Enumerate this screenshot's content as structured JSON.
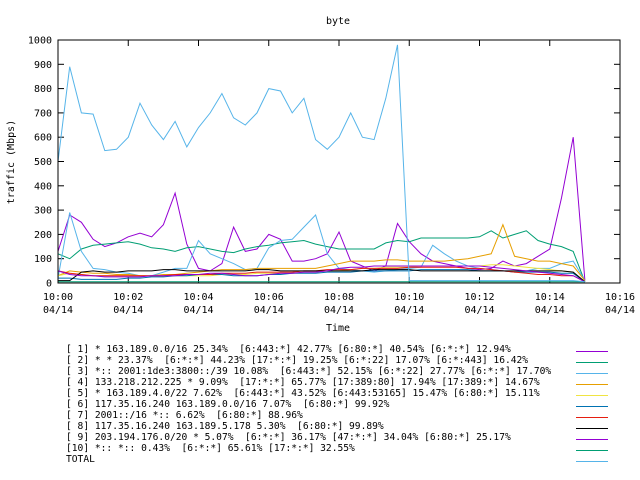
{
  "chart_data": {
    "type": "line",
    "title": "byte",
    "xlabel": "Time",
    "ylabel": "traffic (Mbps)",
    "ylim": [
      0,
      1000
    ],
    "yticks": [
      0,
      100,
      200,
      300,
      400,
      500,
      600,
      700,
      800,
      900,
      1000
    ],
    "xlim": [
      "10:00",
      "10:16"
    ],
    "xticks": [
      {
        "time": "10:00",
        "date": "04/14"
      },
      {
        "time": "10:02",
        "date": "04/14"
      },
      {
        "time": "10:04",
        "date": "04/14"
      },
      {
        "time": "10:06",
        "date": "04/14"
      },
      {
        "time": "10:08",
        "date": "04/14"
      },
      {
        "time": "10:10",
        "date": "04/14"
      },
      {
        "time": "10:12",
        "date": "04/14"
      },
      {
        "time": "10:14",
        "date": "04/14"
      },
      {
        "time": "10:16",
        "date": "04/14"
      }
    ],
    "x": [
      "10:00:00",
      "10:00:20",
      "10:00:40",
      "10:01:00",
      "10:01:20",
      "10:01:40",
      "10:02:00",
      "10:02:20",
      "10:02:40",
      "10:03:00",
      "10:03:20",
      "10:03:40",
      "10:04:00",
      "10:04:20",
      "10:04:40",
      "10:05:00",
      "10:05:20",
      "10:05:40",
      "10:06:00",
      "10:06:20",
      "10:06:40",
      "10:07:00",
      "10:07:20",
      "10:07:40",
      "10:08:00",
      "10:08:20",
      "10:08:40",
      "10:09:00",
      "10:09:20",
      "10:09:40",
      "10:10:00",
      "10:10:20",
      "10:10:40",
      "10:11:00",
      "10:11:20",
      "10:11:40",
      "10:12:00",
      "10:12:20",
      "10:12:40",
      "10:13:00",
      "10:13:20",
      "10:13:40",
      "10:14:00",
      "10:14:20",
      "10:14:40",
      "10:15:00"
    ],
    "grid": false,
    "legend_placement": "bottom",
    "series": [
      {
        "name": "[ 1] * 163.189.0.0/16 25.34%  [6:443:*] 42.77% [6:80:*] 40.54% [6:*:*] 12.94%",
        "color": "#9400d3",
        "values": [
          130,
          280,
          250,
          180,
          150,
          165,
          190,
          205,
          190,
          240,
          370,
          160,
          60,
          50,
          80,
          230,
          130,
          140,
          200,
          180,
          90,
          90,
          100,
          120,
          210,
          90,
          70,
          50,
          70,
          245,
          170,
          120,
          90,
          80,
          70,
          60,
          55,
          60,
          90,
          70,
          80,
          110,
          140,
          350,
          600,
          10
        ]
      },
      {
        "name": "[ 2] * * 23.37%  [6:*:*] 44.23% [17:*:*] 19.25% [6:*:22] 17.07% [6:*:443] 16.42%",
        "color": "#009e73",
        "values": [
          120,
          100,
          140,
          155,
          160,
          165,
          170,
          160,
          145,
          140,
          130,
          145,
          150,
          140,
          130,
          125,
          140,
          150,
          155,
          165,
          170,
          175,
          160,
          150,
          140,
          140,
          140,
          140,
          165,
          175,
          170,
          185,
          185,
          185,
          185,
          185,
          190,
          215,
          185,
          200,
          215,
          175,
          160,
          150,
          130,
          5
        ]
      },
      {
        "name": "[ 3] *:: 2001:1de3:3800::/39 10.08%  [6:443:*] 52.15% [6:*:22] 27.77% [6:*:*] 17.70%",
        "color": "#56b4e9",
        "values": [
          20,
          290,
          130,
          60,
          55,
          45,
          40,
          30,
          30,
          45,
          60,
          60,
          175,
          120,
          100,
          80,
          55,
          60,
          145,
          175,
          180,
          230,
          280,
          120,
          60,
          55,
          50,
          45,
          50,
          55,
          60,
          65,
          155,
          120,
          90,
          70,
          60,
          55,
          50,
          45,
          50,
          60,
          60,
          80,
          90,
          10
        ]
      },
      {
        "name": "[ 4] 133.218.212.225 * 9.09%  [17:*:*] 65.77% [17:389:80] 17.94% [17:389:*] 14.67%",
        "color": "#e69f00",
        "values": [
          30,
          50,
          45,
          40,
          40,
          35,
          35,
          30,
          30,
          35,
          35,
          40,
          45,
          50,
          55,
          55,
          55,
          60,
          60,
          60,
          60,
          60,
          60,
          70,
          80,
          90,
          90,
          90,
          95,
          95,
          90,
          90,
          90,
          90,
          95,
          100,
          110,
          120,
          240,
          110,
          100,
          90,
          90,
          80,
          70,
          10
        ]
      },
      {
        "name": "[ 5] * 163.189.4.0/22 7.62%  [6:443:*] 43.52% [6:443:53165] 15.47% [6:80:*] 15.11%",
        "color": "#f0e442",
        "values": [
          30,
          40,
          35,
          30,
          30,
          30,
          30,
          30,
          30,
          30,
          30,
          30,
          30,
          30,
          35,
          35,
          35,
          40,
          40,
          40,
          40,
          45,
          45,
          50,
          50,
          55,
          60,
          60,
          65,
          65,
          65,
          70,
          70,
          70,
          70,
          70,
          70,
          75,
          75,
          70,
          65,
          60,
          55,
          50,
          45,
          5
        ]
      },
      {
        "name": "[ 6] 117.35.16.240 163.189.0.0/16 7.07%  [6:80:*] 99.92%",
        "color": "#0072b2",
        "values": [
          20,
          20,
          15,
          15,
          15,
          15,
          20,
          20,
          25,
          25,
          30,
          30,
          35,
          35,
          35,
          30,
          30,
          30,
          35,
          35,
          40,
          40,
          40,
          45,
          45,
          45,
          50,
          50,
          50,
          50,
          50,
          55,
          55,
          55,
          55,
          55,
          50,
          50,
          50,
          45,
          45,
          45,
          45,
          40,
          40,
          5
        ]
      },
      {
        "name": "[ 7] 2001::/16 *:: 6.62%  [6:80:*] 88.96%",
        "color": "#e51e10",
        "values": [
          50,
          40,
          35,
          30,
          30,
          30,
          30,
          30,
          30,
          30,
          35,
          35,
          35,
          35,
          40,
          40,
          40,
          45,
          45,
          45,
          45,
          50,
          50,
          55,
          55,
          55,
          60,
          60,
          60,
          60,
          65,
          65,
          65,
          65,
          65,
          60,
          60,
          55,
          50,
          45,
          40,
          35,
          35,
          30,
          30,
          5
        ]
      },
      {
        "name": "[ 8] 117.35.16.240 163.189.5.178 5.30%  [6:80:*] 99.89%",
        "color": "#000000",
        "values": [
          10,
          10,
          45,
          50,
          45,
          45,
          50,
          50,
          50,
          55,
          55,
          50,
          50,
          50,
          50,
          50,
          50,
          55,
          55,
          50,
          50,
          50,
          50,
          50,
          50,
          50,
          50,
          55,
          55,
          55,
          55,
          50,
          50,
          50,
          50,
          50,
          50,
          50,
          50,
          50,
          50,
          50,
          50,
          50,
          45,
          5
        ]
      },
      {
        "name": "[ 9] 203.194.176.0/20 * 5.07%  [6:*:*] 36.17% [47:*:*] 34.04% [6:80:*] 25.17%",
        "color": "#9400d3",
        "values": [
          50,
          35,
          30,
          30,
          25,
          25,
          25,
          25,
          30,
          30,
          30,
          35,
          35,
          40,
          40,
          35,
          30,
          30,
          35,
          40,
          40,
          45,
          45,
          50,
          60,
          65,
          65,
          70,
          70,
          70,
          70,
          70,
          70,
          70,
          70,
          70,
          70,
          65,
          60,
          55,
          50,
          45,
          40,
          35,
          30,
          5
        ]
      },
      {
        "name": "[10] *:: *:: 0.43%  [6:*:*] 65.61% [17:*:*] 32.55%",
        "color": "#009e73",
        "values": [
          5,
          5,
          5,
          5,
          5,
          5,
          5,
          5,
          5,
          5,
          5,
          5,
          5,
          5,
          5,
          5,
          5,
          5,
          5,
          5,
          5,
          5,
          5,
          5,
          5,
          5,
          5,
          5,
          5,
          5,
          5,
          5,
          5,
          5,
          5,
          5,
          5,
          5,
          5,
          5,
          5,
          5,
          5,
          5,
          5,
          5
        ]
      },
      {
        "name": "TOTAL",
        "color": "#56b4e9",
        "values": [
          500,
          890,
          700,
          695,
          545,
          550,
          600,
          740,
          650,
          590,
          665,
          560,
          640,
          700,
          780,
          680,
          650,
          700,
          800,
          790,
          700,
          760,
          590,
          550,
          600,
          700,
          600,
          590,
          760,
          980,
          10,
          10,
          10,
          10,
          10,
          10,
          10,
          10,
          10,
          10,
          10,
          10,
          10,
          10,
          10,
          5
        ]
      }
    ]
  }
}
